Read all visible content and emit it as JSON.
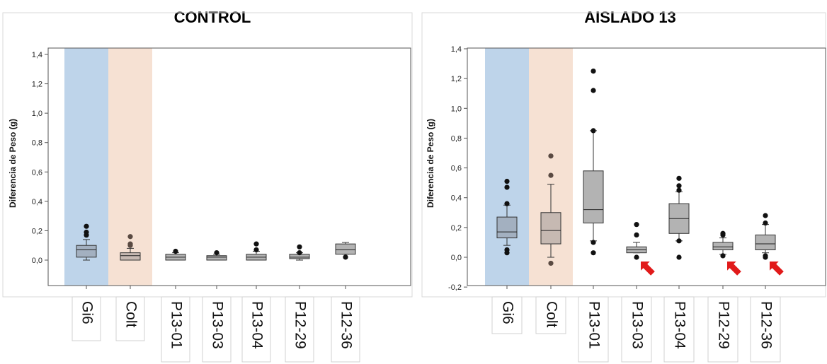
{
  "chart_data": [
    {
      "type": "box",
      "title": "CONTROL",
      "xlabel": "",
      "ylabel": "Diferencia de Peso (g)",
      "ylim": [
        -0.2,
        1.45
      ],
      "yticks": [
        "0,0",
        "0,2",
        "0,4",
        "0,6",
        "0,8",
        "1,0",
        "1,2",
        "1,4"
      ],
      "grid": false,
      "categories": [
        "Gi6",
        "Colt",
        "P13-01",
        "P13-03",
        "P13-04",
        "P12-29",
        "P12-36"
      ],
      "highlight_bands": [
        {
          "category": "Gi6",
          "color": "#b3cde6"
        },
        {
          "category": "Colt",
          "color": "#f5dccb"
        }
      ],
      "boxes": [
        {
          "category": "Gi6",
          "whisker_low": 0.0,
          "q1": 0.02,
          "median": 0.07,
          "q3": 0.1,
          "whisker_high": 0.14,
          "outliers": [
            0.17,
            0.19,
            0.23
          ],
          "fill": "#a3b0c0"
        },
        {
          "category": "Colt",
          "whisker_low": 0.0,
          "q1": 0.0,
          "median": 0.03,
          "q3": 0.05,
          "whisker_high": 0.08,
          "outliers": [
            0.1,
            0.11,
            0.16
          ],
          "fill": "#c6b9b2"
        },
        {
          "category": "P13-01",
          "whisker_low": 0.0,
          "q1": 0.0,
          "median": 0.02,
          "q3": 0.04,
          "whisker_high": 0.05,
          "outliers": [
            0.06
          ],
          "fill": "#b3b3b3"
        },
        {
          "category": "P13-03",
          "whisker_low": 0.0,
          "q1": 0.0,
          "median": 0.02,
          "q3": 0.03,
          "whisker_high": 0.04,
          "outliers": [
            0.05
          ],
          "fill": "#b3b3b3"
        },
        {
          "category": "P13-04",
          "whisker_low": 0.0,
          "q1": 0.0,
          "median": 0.02,
          "q3": 0.04,
          "whisker_high": 0.06,
          "outliers": [
            0.07,
            0.11
          ],
          "fill": "#b3b3b3"
        },
        {
          "category": "P12-29",
          "whisker_low": 0.0,
          "q1": 0.01,
          "median": 0.02,
          "q3": 0.04,
          "whisker_high": 0.05,
          "outliers": [
            0.05,
            0.09
          ],
          "fill": "#b3b3b3"
        },
        {
          "category": "P12-36",
          "whisker_low": 0.04,
          "q1": 0.04,
          "median": 0.07,
          "q3": 0.11,
          "whisker_high": 0.12,
          "outliers": [
            0.02
          ],
          "fill": "#b3b3b3"
        }
      ],
      "arrows": []
    },
    {
      "type": "box",
      "title": "AISLADO 13",
      "xlabel": "",
      "ylabel": "Diferencia de Peso (g)",
      "ylim": [
        -0.2,
        1.4
      ],
      "yticks": [
        "-0,2",
        "0,0",
        "0,2",
        "0,4",
        "0,6",
        "0,8",
        "1,0",
        "1,2",
        "1,4"
      ],
      "grid": false,
      "categories": [
        "Gi6",
        "Colt",
        "P13-01",
        "P13-03",
        "P13-04",
        "P12-29",
        "P12-36"
      ],
      "highlight_bands": [
        {
          "category": "Gi6",
          "color": "#b3cde6"
        },
        {
          "category": "Colt",
          "color": "#f5dccb"
        }
      ],
      "boxes": [
        {
          "category": "Gi6",
          "whisker_low": 0.08,
          "q1": 0.13,
          "median": 0.17,
          "q3": 0.27,
          "whisker_high": 0.35,
          "outliers": [
            0.03,
            0.05,
            0.36,
            0.47,
            0.51
          ],
          "fill": "#a3b0c0"
        },
        {
          "category": "Colt",
          "whisker_low": 0.0,
          "q1": 0.09,
          "median": 0.18,
          "q3": 0.3,
          "whisker_high": 0.49,
          "outliers": [
            -0.04,
            0.55,
            0.68
          ],
          "fill": "#c6b9b2"
        },
        {
          "category": "P13-01",
          "whisker_low": 0.11,
          "q1": 0.23,
          "median": 0.32,
          "q3": 0.58,
          "whisker_high": 0.85,
          "outliers": [
            0.03,
            0.1,
            0.85,
            1.12,
            1.25
          ],
          "fill": "#b3b3b3"
        },
        {
          "category": "P13-03",
          "whisker_low": 0.03,
          "q1": 0.03,
          "median": 0.05,
          "q3": 0.07,
          "whisker_high": 0.1,
          "outliers": [
            0.0,
            0.15,
            0.22
          ],
          "fill": "#b3b3b3"
        },
        {
          "category": "P13-04",
          "whisker_low": 0.11,
          "q1": 0.16,
          "median": 0.26,
          "q3": 0.36,
          "whisker_high": 0.44,
          "outliers": [
            0.0,
            0.11,
            0.45,
            0.48,
            0.53
          ],
          "fill": "#b3b3b3"
        },
        {
          "category": "P12-29",
          "whisker_low": 0.02,
          "q1": 0.05,
          "median": 0.07,
          "q3": 0.1,
          "whisker_high": 0.13,
          "outliers": [
            0.01,
            0.15,
            0.16
          ],
          "fill": "#b3b3b3"
        },
        {
          "category": "P12-36",
          "whisker_low": 0.03,
          "q1": 0.05,
          "median": 0.09,
          "q3": 0.15,
          "whisker_high": 0.22,
          "outliers": [
            0.0,
            0.01,
            0.23,
            0.28
          ],
          "fill": "#b3b3b3"
        }
      ],
      "arrows": [
        "P13-03",
        "P12-29",
        "P12-36"
      ],
      "arrow_color": "#e11a1a"
    }
  ]
}
